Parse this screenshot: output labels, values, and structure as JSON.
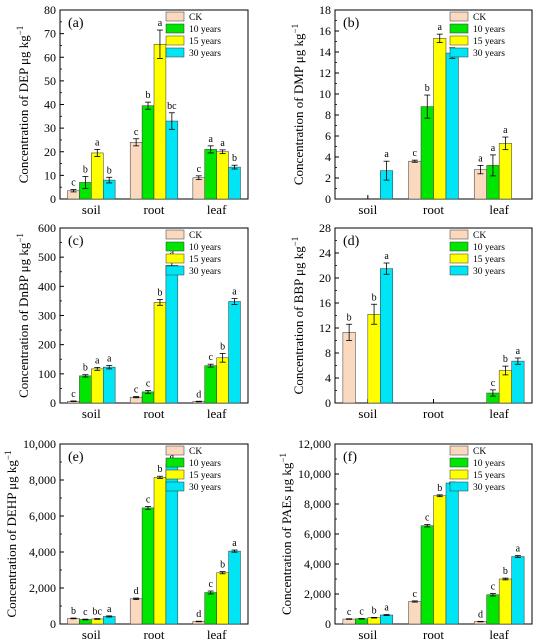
{
  "chart_data": [
    {
      "type": "bar",
      "panel_label": "(a)",
      "ylabel": "Concentration of DEP μg kg",
      "ylabel_sup": "−1",
      "categories": [
        "soil",
        "root",
        "leaf"
      ],
      "ylim": [
        0,
        80
      ],
      "yticks": [
        "0",
        "10",
        "20",
        "30",
        "40",
        "50",
        "60",
        "70",
        "80"
      ],
      "legend": [
        "CK",
        "10 years",
        "15 years",
        "30 years"
      ],
      "series": [
        {
          "name": "CK",
          "color": "#fad9bf",
          "values": [
            3.5,
            24,
            9
          ],
          "errors": [
            0.5,
            1.5,
            0.8
          ],
          "letters": [
            "c",
            "c",
            "c"
          ]
        },
        {
          "name": "10 years",
          "color": "#00e600",
          "values": [
            7,
            39.5,
            21
          ],
          "errors": [
            2.5,
            1.5,
            1.5
          ],
          "letters": [
            "b",
            "b",
            "a"
          ]
        },
        {
          "name": "15 years",
          "color": "#ffff00",
          "values": [
            19.5,
            65.5,
            20
          ],
          "errors": [
            1.5,
            6,
            0.8
          ],
          "letters": [
            "a",
            "a",
            "a"
          ]
        },
        {
          "name": "30 years",
          "color": "#00e5f5",
          "values": [
            8,
            33,
            13.5
          ],
          "errors": [
            1.2,
            3.5,
            0.8
          ],
          "letters": [
            "b",
            "bc",
            "b"
          ]
        }
      ]
    },
    {
      "type": "bar",
      "panel_label": "(b)",
      "ylabel": "Concentration of DMP μg kg",
      "ylabel_sup": "−1",
      "categories": [
        "soil",
        "root",
        "leaf"
      ],
      "ylim": [
        0,
        18
      ],
      "yticks": [
        "0",
        "2",
        "4",
        "6",
        "8",
        "10",
        "12",
        "14",
        "16",
        "18"
      ],
      "legend": [
        "CK",
        "10 years",
        "15 years",
        "30 years"
      ],
      "series": [
        {
          "name": "CK",
          "color": "#fad9bf",
          "values": [
            0,
            3.6,
            2.8
          ],
          "errors": [
            0,
            0.1,
            0.4
          ],
          "letters": [
            "",
            "c",
            "a"
          ]
        },
        {
          "name": "10 years",
          "color": "#00e600",
          "values": [
            0,
            8.8,
            3.2
          ],
          "errors": [
            0,
            1.1,
            1.0
          ],
          "letters": [
            "",
            "b",
            "a"
          ]
        },
        {
          "name": "15 years",
          "color": "#ffff00",
          "values": [
            0,
            15.3,
            5.3
          ],
          "errors": [
            0,
            0.4,
            0.6
          ],
          "letters": [
            "",
            "a",
            "a"
          ]
        },
        {
          "name": "30 years",
          "color": "#00e5f5",
          "values": [
            2.7,
            13.9,
            0
          ],
          "errors": [
            0.9,
            0.5,
            0
          ],
          "letters": [
            "a",
            "a",
            ""
          ]
        }
      ]
    },
    {
      "type": "bar",
      "panel_label": "(c)",
      "ylabel": "Concentration of DnBP μg kg",
      "ylabel_sup": "−1",
      "categories": [
        "soil",
        "root",
        "leaf"
      ],
      "ylim": [
        0,
        600
      ],
      "yticks": [
        "0",
        "100",
        "200",
        "300",
        "400",
        "500",
        "600"
      ],
      "legend": [
        "CK",
        "10 years",
        "15 years",
        "30 years"
      ],
      "series": [
        {
          "name": "CK",
          "color": "#fad9bf",
          "values": [
            6,
            20,
            5
          ],
          "errors": [
            1,
            2,
            1
          ],
          "letters": [
            "c",
            "c",
            "d"
          ]
        },
        {
          "name": "10 years",
          "color": "#00e600",
          "values": [
            93,
            38,
            128
          ],
          "errors": [
            4,
            5,
            5
          ],
          "letters": [
            "b",
            "c",
            "c"
          ]
        },
        {
          "name": "15 years",
          "color": "#ffff00",
          "values": [
            117,
            345,
            155
          ],
          "errors": [
            5,
            10,
            15
          ],
          "letters": [
            "a",
            "b",
            "b"
          ]
        },
        {
          "name": "30 years",
          "color": "#00e5f5",
          "values": [
            123,
            472,
            348
          ],
          "errors": [
            6,
            20,
            10
          ],
          "letters": [
            "a",
            "a",
            "a"
          ]
        }
      ]
    },
    {
      "type": "bar",
      "panel_label": "(d)",
      "ylabel": "Concentration of BBP μg kg",
      "ylabel_sup": "−1",
      "categories": [
        "soil",
        "root",
        "leaf"
      ],
      "ylim": [
        0,
        28
      ],
      "yticks": [
        "0",
        "4",
        "8",
        "12",
        "16",
        "20",
        "24",
        "28"
      ],
      "legend": [
        "CK",
        "10 years",
        "15 years",
        "30 years"
      ],
      "series": [
        {
          "name": "CK",
          "color": "#fad9bf",
          "values": [
            11.3,
            0,
            0
          ],
          "errors": [
            1.3,
            0,
            0
          ],
          "letters": [
            "b",
            "",
            ""
          ]
        },
        {
          "name": "10 years",
          "color": "#00e600",
          "values": [
            0,
            0,
            1.6
          ],
          "errors": [
            0,
            0,
            0.5
          ],
          "letters": [
            "",
            "",
            "c"
          ]
        },
        {
          "name": "15 years",
          "color": "#ffff00",
          "values": [
            14.2,
            0,
            5.2
          ],
          "errors": [
            1.6,
            0,
            0.7
          ],
          "letters": [
            "b",
            "",
            "b"
          ]
        },
        {
          "name": "30 years",
          "color": "#00e5f5",
          "values": [
            21.5,
            0,
            6.7
          ],
          "errors": [
            0.9,
            0,
            0.5
          ],
          "letters": [
            "a",
            "",
            "a"
          ]
        }
      ]
    },
    {
      "type": "bar",
      "panel_label": "(e)",
      "ylabel": "Concentration of DEHP μg kg",
      "ylabel_sup": "−1",
      "categories": [
        "soil",
        "root",
        "leaf"
      ],
      "ylim": [
        0,
        10000
      ],
      "yticks": [
        "0",
        "2,000",
        "4,000",
        "6,000",
        "8,000",
        "10,000"
      ],
      "legend": [
        "CK",
        "10 years",
        "15 years",
        "30 years"
      ],
      "series": [
        {
          "name": "CK",
          "color": "#fad9bf",
          "values": [
            310,
            1400,
            140
          ],
          "errors": [
            20,
            40,
            15
          ],
          "letters": [
            "b",
            "d",
            "d"
          ]
        },
        {
          "name": "10 years",
          "color": "#00e600",
          "values": [
            250,
            6450,
            1750
          ],
          "errors": [
            20,
            80,
            80
          ],
          "letters": [
            "c",
            "c",
            "c"
          ]
        },
        {
          "name": "15 years",
          "color": "#ffff00",
          "values": [
            280,
            8150,
            2850
          ],
          "errors": [
            20,
            60,
            60
          ],
          "letters": [
            "bc",
            "b",
            "b"
          ]
        },
        {
          "name": "30 years",
          "color": "#00e5f5",
          "values": [
            420,
            8900,
            4050
          ],
          "errors": [
            30,
            60,
            60
          ],
          "letters": [
            "a",
            "a",
            "a"
          ]
        }
      ]
    },
    {
      "type": "bar",
      "panel_label": "(f)",
      "ylabel": "Concentration of PAEs μg kg",
      "ylabel_sup": "−1",
      "categories": [
        "soil",
        "root",
        "leaf"
      ],
      "ylim": [
        0,
        12000
      ],
      "yticks": [
        "0",
        "2,000",
        "4,000",
        "6,000",
        "8,000",
        "10,000",
        "12,000"
      ],
      "legend": [
        "CK",
        "10 years",
        "15 years",
        "30 years"
      ],
      "series": [
        {
          "name": "CK",
          "color": "#fad9bf",
          "values": [
            330,
            1500,
            160
          ],
          "errors": [
            20,
            40,
            15
          ],
          "letters": [
            "c",
            "c",
            "d"
          ]
        },
        {
          "name": "10 years",
          "color": "#00e600",
          "values": [
            350,
            6550,
            1950
          ],
          "errors": [
            20,
            80,
            80
          ],
          "letters": [
            "c",
            "c",
            "c"
          ]
        },
        {
          "name": "15 years",
          "color": "#ffff00",
          "values": [
            420,
            8550,
            3000
          ],
          "errors": [
            20,
            60,
            60
          ],
          "letters": [
            "b",
            "b",
            "b"
          ]
        },
        {
          "name": "30 years",
          "color": "#00e5f5",
          "values": [
            600,
            9400,
            4500
          ],
          "errors": [
            30,
            60,
            60
          ],
          "letters": [
            "a",
            "a",
            "a"
          ]
        }
      ]
    }
  ]
}
